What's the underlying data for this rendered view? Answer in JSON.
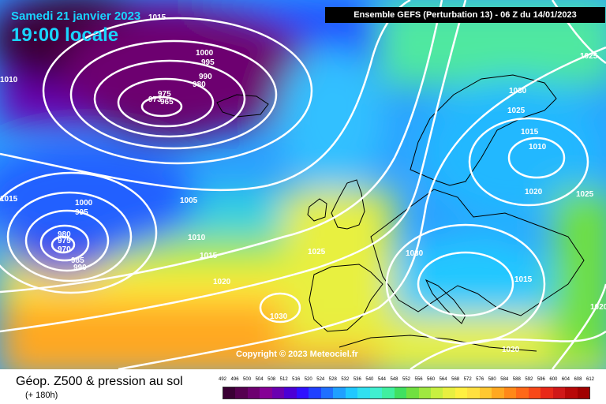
{
  "header": {
    "date": "Samedi 21 janvier 2023",
    "time": "19:00 locale",
    "ensemble": "Ensemble GEFS  (Perturbation 13)  -  06 Z du 14/01/2023"
  },
  "copyright": "Copyright © 2023 Meteociel.fr",
  "footer": {
    "title": "Géop. Z500 & pression au sol",
    "subtitle": "(+ 180h)"
  },
  "scale": {
    "labels": [
      "492",
      "496",
      "500",
      "504",
      "508",
      "512",
      "516",
      "520",
      "524",
      "528",
      "532",
      "536",
      "540",
      "544",
      "548",
      "552",
      "556",
      "560",
      "564",
      "568",
      "572",
      "576",
      "580",
      "584",
      "588",
      "592",
      "596",
      "600",
      "604",
      "608",
      "612"
    ],
    "colors": [
      "#3a0034",
      "#560050",
      "#6d0070",
      "#850095",
      "#6a00b0",
      "#4b00d5",
      "#2f10ff",
      "#2040ff",
      "#2070ff",
      "#20a0ff",
      "#20c8ff",
      "#30e0f0",
      "#40f0d0",
      "#40f0a0",
      "#40e060",
      "#70e040",
      "#a0e840",
      "#c8f040",
      "#e8f040",
      "#fff040",
      "#ffe040",
      "#ffc830",
      "#ffa820",
      "#ff8818",
      "#ff6818",
      "#f84818",
      "#e82818",
      "#d01818",
      "#b80808",
      "#a00000"
    ]
  },
  "pressure_labels": [
    "1015",
    "1000",
    "995",
    "990",
    "980",
    "975",
    "973",
    "965",
    "1010",
    "1000",
    "995",
    "980",
    "975",
    "970",
    "985",
    "990",
    "1005",
    "1010",
    "1015",
    "1020",
    "1025",
    "1030",
    "1030",
    "1025",
    "1015",
    "1010",
    "1020",
    "1025",
    "1030",
    "1015",
    "1020",
    "1025",
    "1020",
    "1015"
  ]
}
